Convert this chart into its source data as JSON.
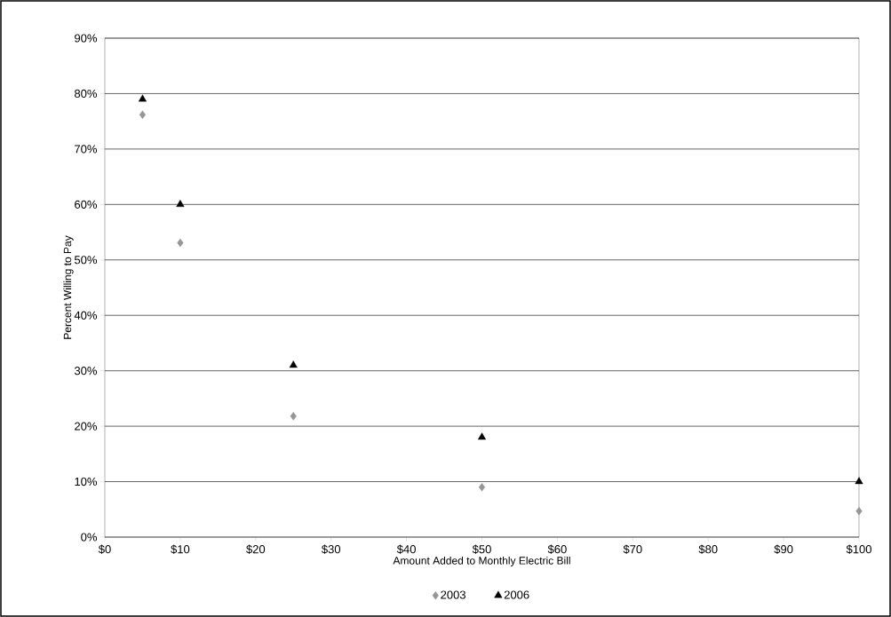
{
  "chart_data": {
    "type": "scatter",
    "xlabel": "Amount Added to Monthly Electric Bill",
    "ylabel": "Percent Willing to Pay",
    "x": [
      5,
      10,
      25,
      50,
      100
    ],
    "series": [
      {
        "name": "2003",
        "color": "#969696",
        "marker": "diamond",
        "values": [
          76.2,
          53.1,
          21.8,
          9.0,
          4.7
        ]
      },
      {
        "name": "2006",
        "color": "#000000",
        "marker": "triangle",
        "values": [
          79,
          60,
          31,
          18,
          10
        ]
      }
    ],
    "xlim": [
      0,
      100
    ],
    "xticks": [
      {
        "value": 0,
        "label": "$0"
      },
      {
        "value": 10,
        "label": "$10"
      },
      {
        "value": 20,
        "label": "$20"
      },
      {
        "value": 30,
        "label": "$30"
      },
      {
        "value": 40,
        "label": "$40"
      },
      {
        "value": 50,
        "label": "$50"
      },
      {
        "value": 60,
        "label": "$60"
      },
      {
        "value": 70,
        "label": "$70"
      },
      {
        "value": 80,
        "label": "$80"
      },
      {
        "value": 90,
        "label": "$90"
      },
      {
        "value": 100,
        "label": "$100"
      }
    ],
    "ylim": [
      0,
      90
    ],
    "yticks": [
      {
        "value": 0,
        "label": "0%"
      },
      {
        "value": 10,
        "label": "10%"
      },
      {
        "value": 20,
        "label": "20%"
      },
      {
        "value": 30,
        "label": "30%"
      },
      {
        "value": 40,
        "label": "40%"
      },
      {
        "value": 50,
        "label": "50%"
      },
      {
        "value": 60,
        "label": "60%"
      },
      {
        "value": 70,
        "label": "70%"
      },
      {
        "value": 80,
        "label": "80%"
      },
      {
        "value": 90,
        "label": "90%"
      }
    ],
    "grid": "y",
    "legend": "bottom"
  }
}
